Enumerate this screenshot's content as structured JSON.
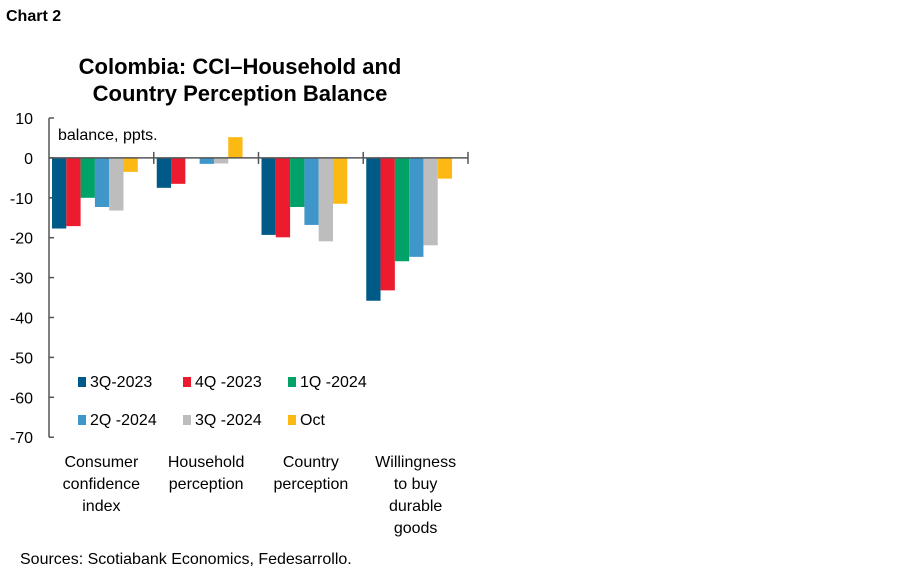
{
  "header": "Chart 2",
  "source": "Sources: Scotiabank Economics, Fedesarrollo.",
  "chart_data": {
    "type": "bar",
    "title": [
      "Colombia: CCI–Household and",
      "Country Perception Balance"
    ],
    "ylabel": "balance, ppts.",
    "ylim": [
      -70,
      10
    ],
    "yticks": [
      10,
      0,
      -10,
      -20,
      -30,
      -40,
      -50,
      -60,
      -70
    ],
    "grid": false,
    "legend_position": "bottom-inside",
    "categories": [
      [
        "Consumer",
        "confidence",
        "index"
      ],
      [
        "Household",
        "perception"
      ],
      [
        "Country",
        "perception"
      ],
      [
        "Willingness",
        "to buy",
        "durable",
        "goods"
      ]
    ],
    "series": [
      {
        "name": "3Q-2023",
        "color": "#005a87",
        "values": [
          -17.7,
          -7.5,
          -19.3,
          -35.8
        ]
      },
      {
        "name": "4Q -2023",
        "color": "#ec1c2e",
        "values": [
          -17.1,
          -6.5,
          -19.9,
          -33.2
        ]
      },
      {
        "name": "1Q -2024",
        "color": "#00a267",
        "values": [
          -10.0,
          0,
          -12.3,
          -25.9
        ]
      },
      {
        "name": "2Q -2024",
        "color": "#3f96c9",
        "values": [
          -12.3,
          -1.5,
          -16.8,
          -24.8
        ]
      },
      {
        "name": "3Q -2024",
        "color": "#bdbdbd",
        "values": [
          -13.2,
          -1.4,
          -20.9,
          -21.9
        ]
      },
      {
        "name": "Oct",
        "color": "#fdb913",
        "values": [
          -3.5,
          5.2,
          -11.5,
          -5.2
        ]
      }
    ]
  }
}
